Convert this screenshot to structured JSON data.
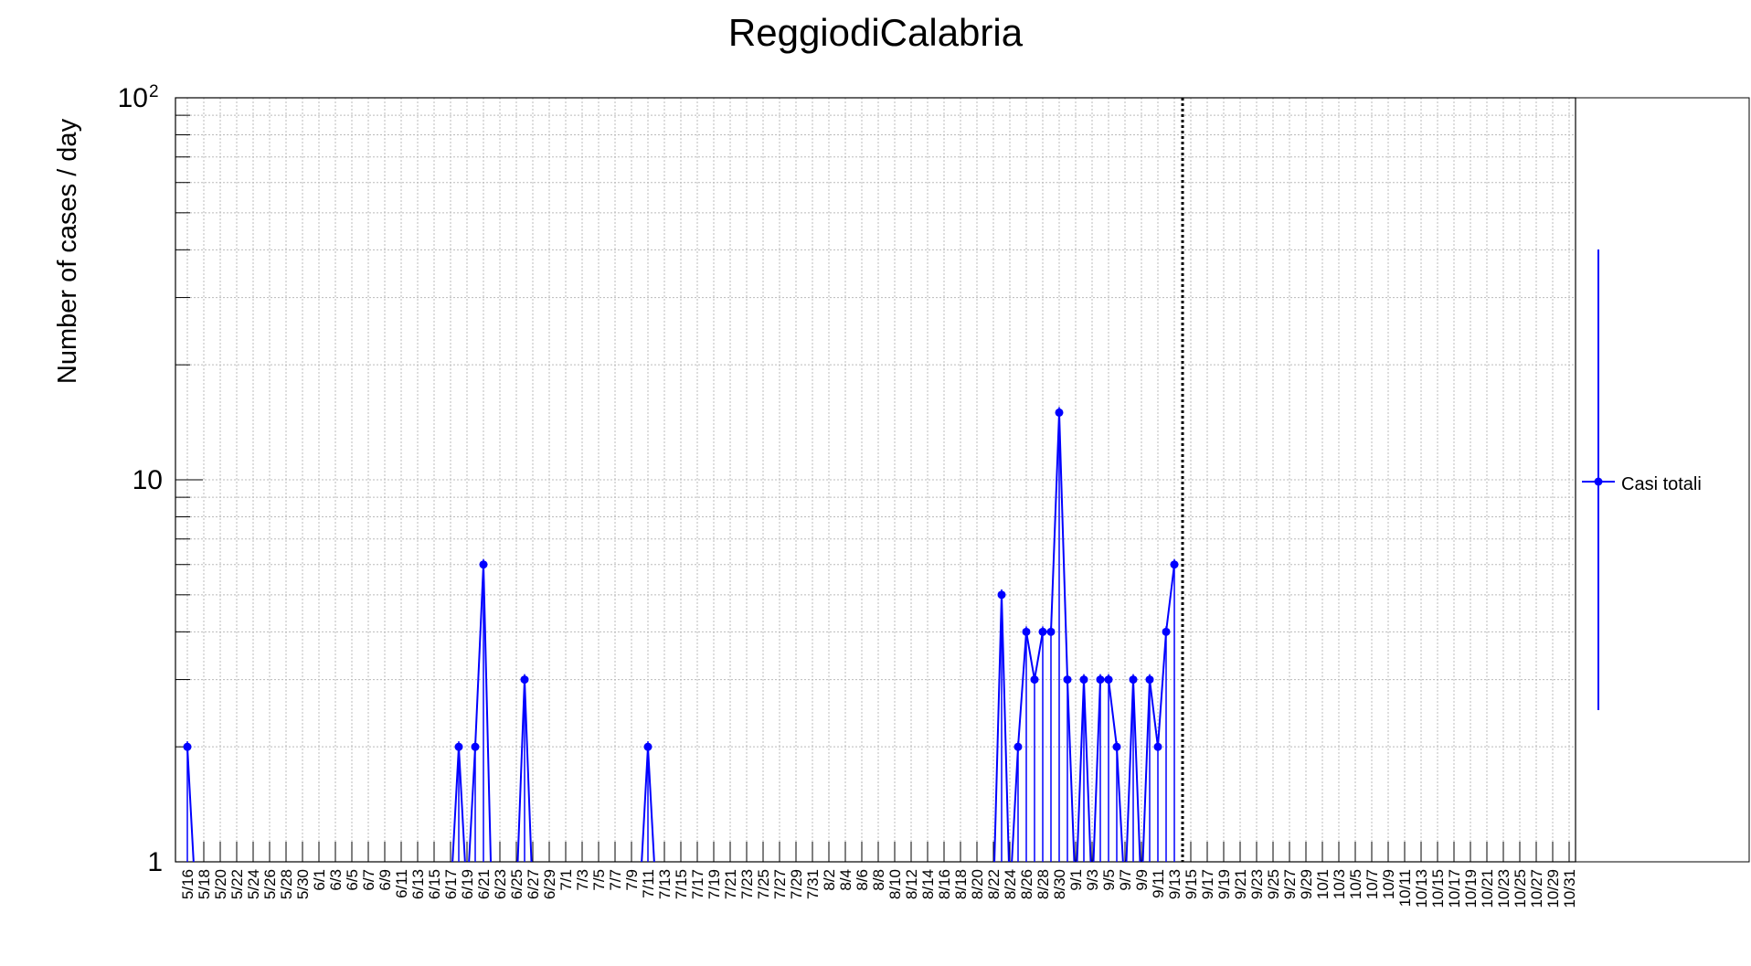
{
  "chart_data": {
    "type": "line",
    "title": "ReggiodiCalabria",
    "ylabel": "Number of cases / day",
    "xlabel": "",
    "y_scale": "log",
    "ylim": [
      1,
      100
    ],
    "y_tick_labels": [
      {
        "value": 1,
        "label": "1"
      },
      {
        "value": 10,
        "label": "10"
      },
      {
        "value": 100,
        "label": "10",
        "exponent": "2"
      }
    ],
    "x_start_month": 5,
    "x_start_day": 16,
    "x_end_month": 11,
    "x_end_day": 1,
    "x_tick_step_days": 2,
    "vertical_marker": "9/14",
    "grid": true,
    "legend_position": "right",
    "color": "#0000ff",
    "series": [
      {
        "name": "Casi totali",
        "points": [
          {
            "date": "5/16",
            "y": 2
          },
          {
            "date": "6/18",
            "y": 2
          },
          {
            "date": "6/20",
            "y": 2
          },
          {
            "date": "6/21",
            "y": 6
          },
          {
            "date": "6/26",
            "y": 3
          },
          {
            "date": "7/11",
            "y": 2
          },
          {
            "date": "8/23",
            "y": 5
          },
          {
            "date": "8/25",
            "y": 2
          },
          {
            "date": "8/26",
            "y": 4
          },
          {
            "date": "8/27",
            "y": 3
          },
          {
            "date": "8/28",
            "y": 4
          },
          {
            "date": "8/29",
            "y": 4
          },
          {
            "date": "8/30",
            "y": 15
          },
          {
            "date": "8/31",
            "y": 3
          },
          {
            "date": "9/2",
            "y": 3
          },
          {
            "date": "9/4",
            "y": 3
          },
          {
            "date": "9/5",
            "y": 3
          },
          {
            "date": "9/6",
            "y": 2
          },
          {
            "date": "9/8",
            "y": 3
          },
          {
            "date": "9/10",
            "y": 3
          },
          {
            "date": "9/11",
            "y": 2
          },
          {
            "date": "9/12",
            "y": 4
          },
          {
            "date": "9/13",
            "y": 6
          }
        ]
      }
    ]
  }
}
